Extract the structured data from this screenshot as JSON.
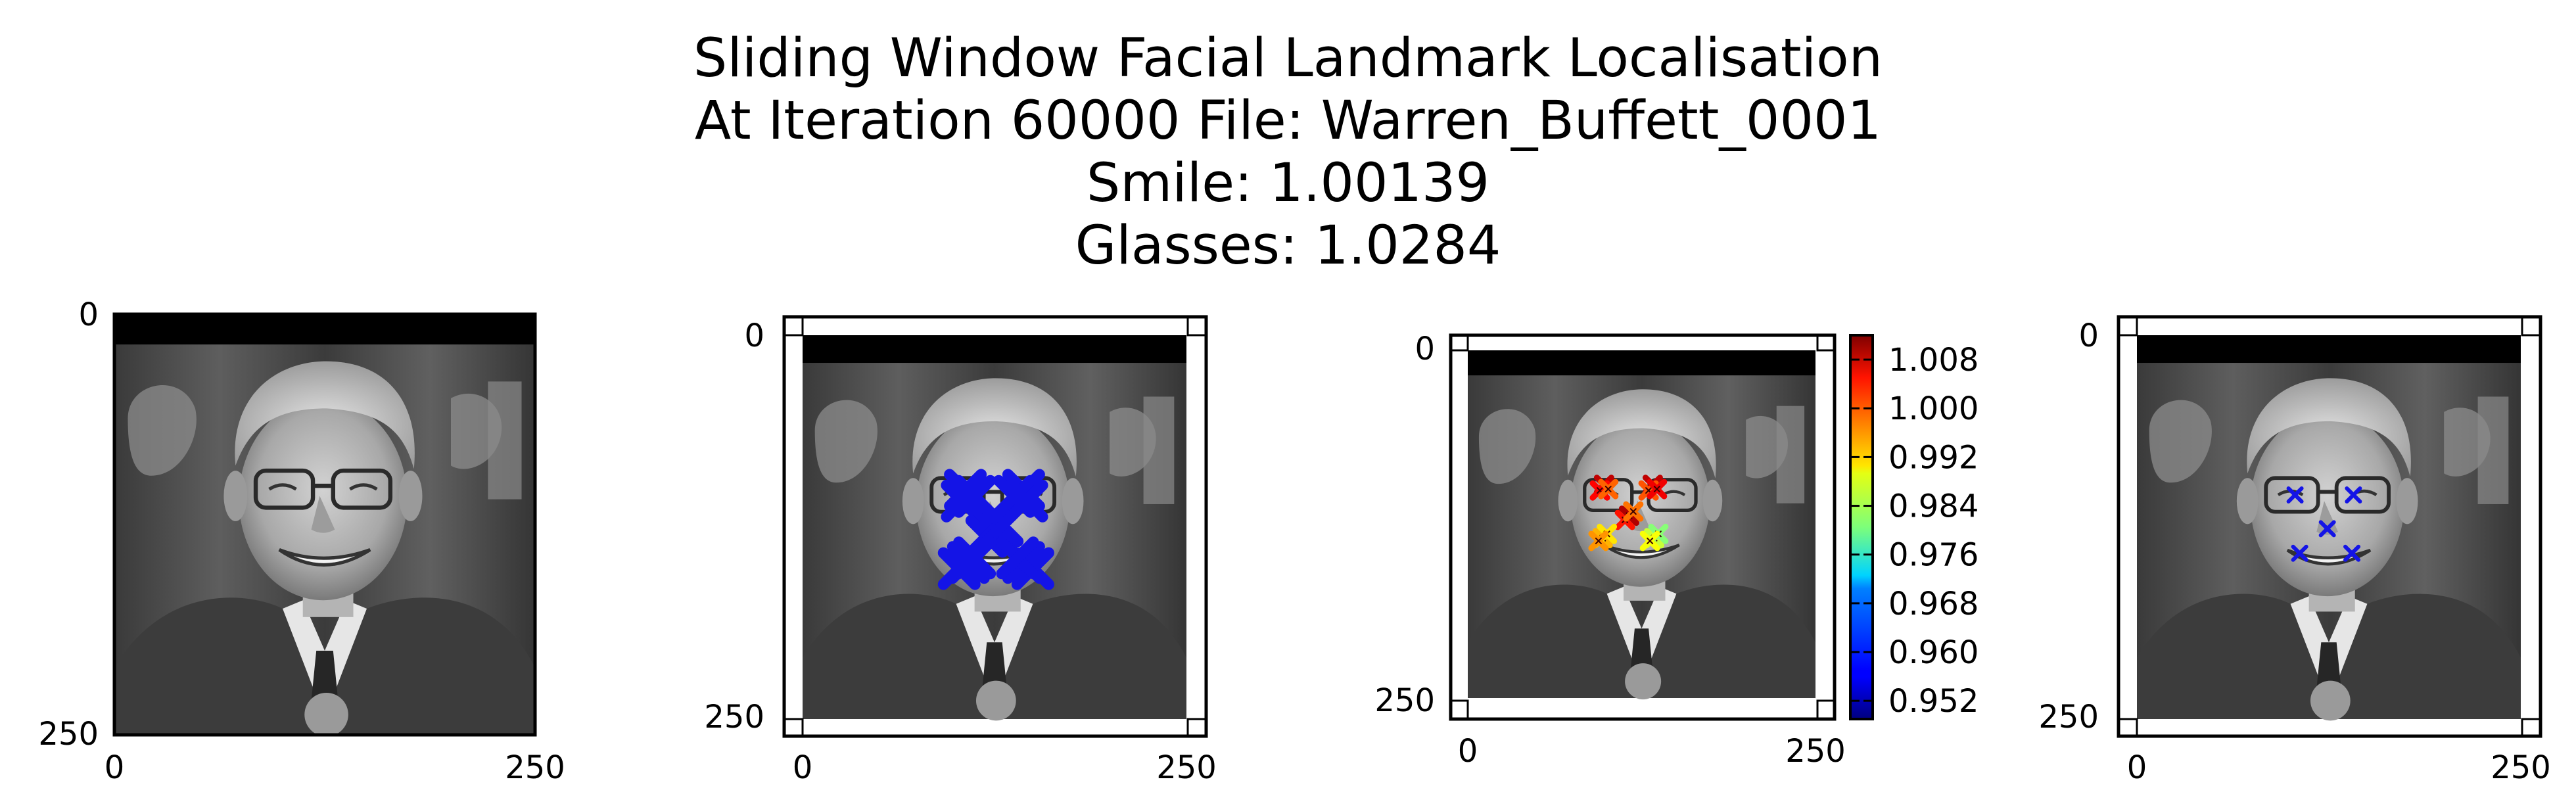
{
  "title_lines": [
    "Sliding Window Facial Landmark Localisation",
    "At Iteration 60000 File: Warren_Buffett_0001",
    "Smile: 1.00139",
    "Glasses: 1.0284"
  ],
  "chart_data": [
    {
      "type": "image",
      "panel": "input-image",
      "xlim": [
        0,
        250
      ],
      "ylim": [
        250,
        0
      ],
      "xticks": [
        "0",
        "250"
      ],
      "yticks": [
        "0",
        "250"
      ]
    },
    {
      "type": "scatter",
      "panel": "sliding-window-hits",
      "xlim": [
        0,
        250
      ],
      "ylim": [
        250,
        0
      ],
      "xticks": [
        "0",
        "250"
      ],
      "yticks": [
        "0",
        "250"
      ],
      "marker": "x",
      "color": "#1414e6",
      "points": [
        {
          "x": 106,
          "y": 101
        },
        {
          "x": 112,
          "y": 105
        },
        {
          "x": 104,
          "y": 108
        },
        {
          "x": 144,
          "y": 101
        },
        {
          "x": 138,
          "y": 105
        },
        {
          "x": 146,
          "y": 108
        },
        {
          "x": 126,
          "y": 127
        },
        {
          "x": 120,
          "y": 131
        },
        {
          "x": 130,
          "y": 124
        },
        {
          "x": 108,
          "y": 148
        },
        {
          "x": 102,
          "y": 152
        },
        {
          "x": 112,
          "y": 145
        },
        {
          "x": 144,
          "y": 148
        },
        {
          "x": 150,
          "y": 152
        },
        {
          "x": 140,
          "y": 145
        }
      ]
    },
    {
      "type": "scatter",
      "panel": "confidence-map",
      "xlim": [
        0,
        250
      ],
      "ylim": [
        250,
        0
      ],
      "xticks": [
        "0",
        "250"
      ],
      "yticks": [
        "0",
        "250"
      ],
      "colorbar": {
        "ticks": [
          "1.008",
          "1.000",
          "0.992",
          "0.984",
          "0.976",
          "0.968",
          "0.960",
          "0.952"
        ],
        "range": [
          0.949,
          1.012
        ],
        "cmap": "jet"
      },
      "points": [
        {
          "x": 98,
          "y": 96,
          "v": 1.008
        },
        {
          "x": 95,
          "y": 100,
          "v": 1.004
        },
        {
          "x": 101,
          "y": 99,
          "v": 0.998
        },
        {
          "x": 133,
          "y": 96,
          "v": 1.008
        },
        {
          "x": 130,
          "y": 100,
          "v": 0.999
        },
        {
          "x": 136,
          "y": 99,
          "v": 1.005
        },
        {
          "x": 116,
          "y": 118,
          "v": 1.009
        },
        {
          "x": 113,
          "y": 121,
          "v": 1.003
        },
        {
          "x": 119,
          "y": 115,
          "v": 0.997
        },
        {
          "x": 97,
          "y": 134,
          "v": 0.993
        },
        {
          "x": 100,
          "y": 131,
          "v": 0.99
        },
        {
          "x": 94,
          "y": 136,
          "v": 0.995
        },
        {
          "x": 134,
          "y": 134,
          "v": 0.985
        },
        {
          "x": 137,
          "y": 131,
          "v": 0.981
        },
        {
          "x": 131,
          "y": 136,
          "v": 0.988
        }
      ]
    },
    {
      "type": "scatter",
      "panel": "predicted-landmarks",
      "xlim": [
        0,
        250
      ],
      "ylim": [
        250,
        0
      ],
      "xticks": [
        "0",
        "250"
      ],
      "yticks": [
        "0",
        "250"
      ],
      "marker": "x",
      "color": "#1414e6",
      "points": [
        {
          "x": 103,
          "y": 104
        },
        {
          "x": 141,
          "y": 104
        },
        {
          "x": 124,
          "y": 126
        },
        {
          "x": 106,
          "y": 142
        },
        {
          "x": 140,
          "y": 142
        }
      ]
    }
  ]
}
